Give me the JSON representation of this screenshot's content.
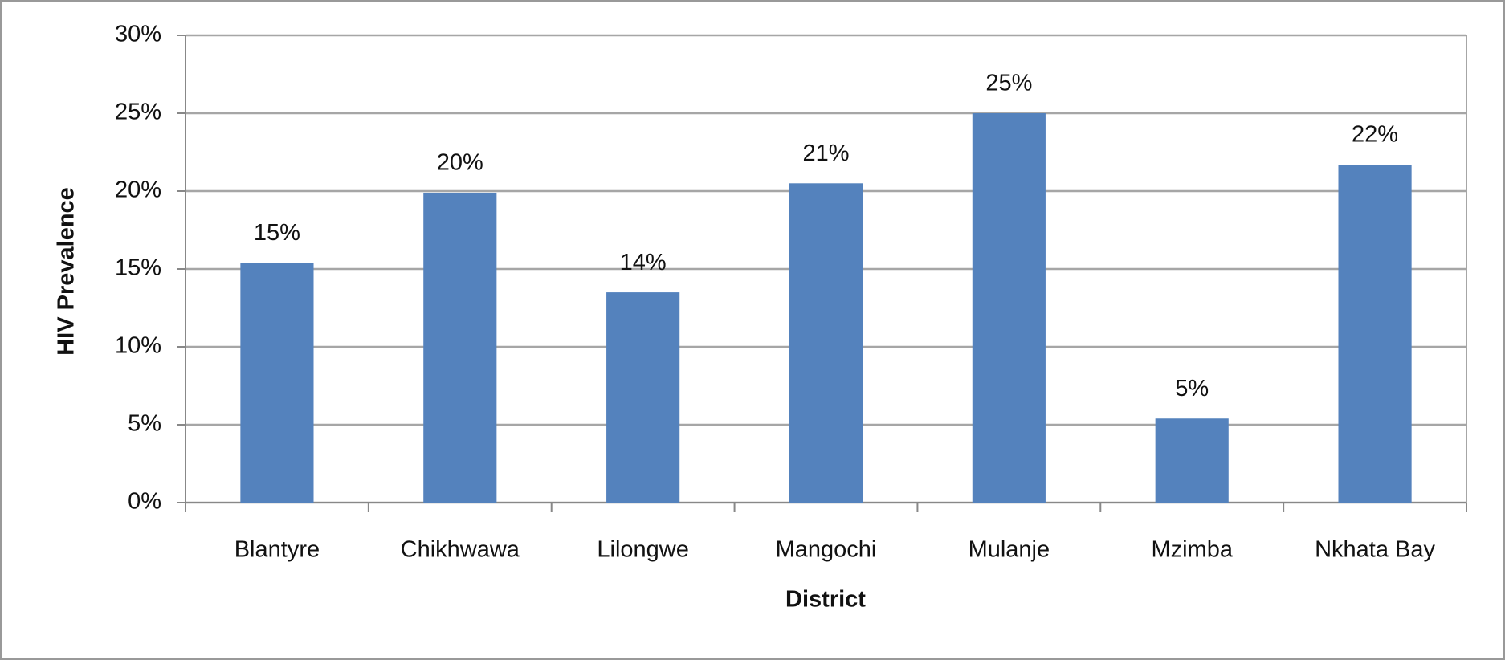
{
  "chart_data": {
    "type": "bar",
    "categories": [
      "Blantyre",
      "Chikhwawa",
      "Lilongwe",
      "Mangochi",
      "Mulanje",
      "Mzimba",
      "Nkhata Bay"
    ],
    "values": [
      15.4,
      19.9,
      13.5,
      20.5,
      25.0,
      5.4,
      21.7
    ],
    "value_labels": [
      "15%",
      "20%",
      "14%",
      "21%",
      "25%",
      "5%",
      "22%"
    ],
    "color": "#5482bd",
    "x_label": "District",
    "y_label": "HIV Prevalence",
    "ylim": [
      0,
      30
    ],
    "yticks": [
      {
        "value": 0,
        "label": "0%"
      },
      {
        "value": 5,
        "label": "5%"
      },
      {
        "value": 10,
        "label": "10%"
      },
      {
        "value": 15,
        "label": "15%"
      },
      {
        "value": 20,
        "label": "20%"
      },
      {
        "value": 25,
        "label": "25%"
      },
      {
        "value": 30,
        "label": "30%"
      }
    ],
    "grid": true
  }
}
